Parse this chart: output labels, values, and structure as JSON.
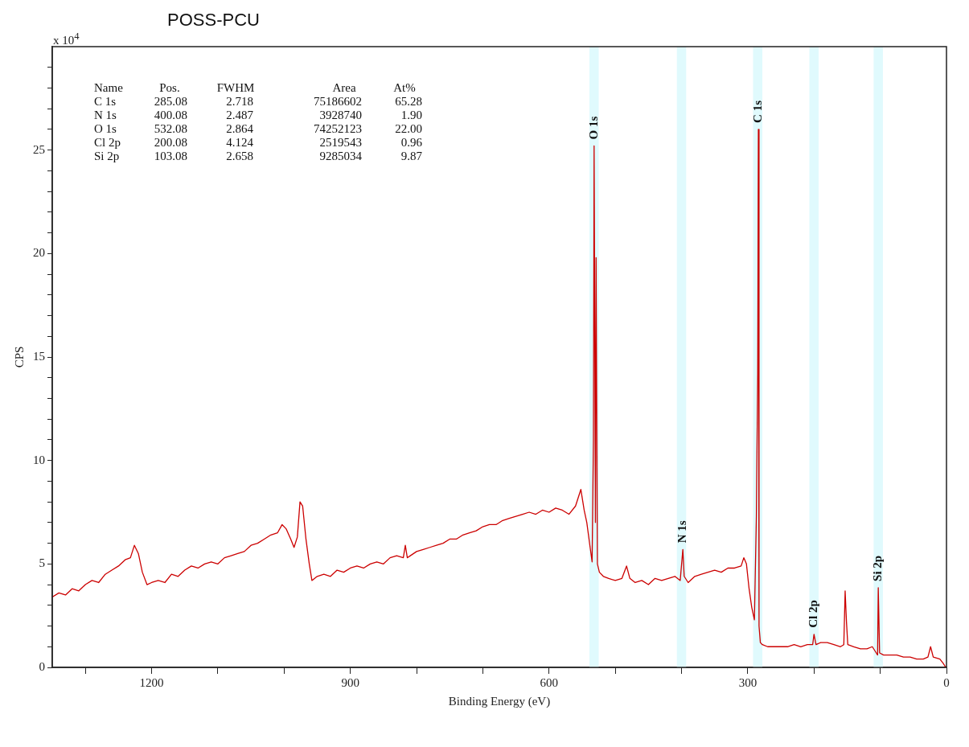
{
  "chart_data": {
    "type": "line",
    "title": "POSS-PCU",
    "xlabel": "Binding Energy (eV)",
    "ylabel": "CPS",
    "x": [
      1350,
      1340,
      1330,
      1320,
      1310,
      1300,
      1290,
      1280,
      1270,
      1260,
      1250,
      1240,
      1232,
      1226,
      1220,
      1214,
      1207,
      1200,
      1190,
      1180,
      1170,
      1160,
      1150,
      1140,
      1130,
      1120,
      1110,
      1100,
      1090,
      1080,
      1070,
      1060,
      1050,
      1040,
      1030,
      1020,
      1010,
      1003,
      997,
      990,
      985,
      980,
      976,
      972,
      967,
      962,
      958,
      950,
      940,
      930,
      920,
      910,
      900,
      890,
      880,
      870,
      860,
      850,
      840,
      830,
      820,
      817,
      814,
      800,
      790,
      780,
      770,
      760,
      750,
      740,
      730,
      720,
      710,
      700,
      690,
      680,
      670,
      660,
      650,
      640,
      630,
      620,
      610,
      600,
      590,
      580,
      570,
      560,
      552,
      547,
      543,
      538,
      535,
      533,
      532,
      530,
      529,
      527,
      524,
      518,
      510,
      500,
      490,
      483,
      478,
      470,
      460,
      450,
      440,
      430,
      420,
      410,
      402,
      398,
      396,
      390,
      380,
      370,
      360,
      350,
      340,
      330,
      320,
      310,
      306,
      302,
      298,
      294,
      290,
      287,
      285,
      284,
      283,
      281,
      278,
      270,
      260,
      250,
      240,
      230,
      220,
      210,
      202,
      200,
      197,
      190,
      180,
      170,
      160,
      155,
      153,
      151,
      149,
      140,
      130,
      120,
      112,
      106,
      104,
      103,
      101,
      95,
      85,
      75,
      65,
      55,
      45,
      35,
      28,
      24,
      20,
      10,
      5,
      1
    ],
    "values": [
      3.4,
      3.6,
      3.5,
      3.8,
      3.7,
      4.0,
      4.2,
      4.1,
      4.5,
      4.7,
      4.9,
      5.2,
      5.3,
      5.9,
      5.5,
      4.6,
      4.0,
      4.1,
      4.2,
      4.1,
      4.5,
      4.4,
      4.7,
      4.9,
      4.8,
      5.0,
      5.1,
      5.0,
      5.3,
      5.4,
      5.5,
      5.6,
      5.9,
      6.0,
      6.2,
      6.4,
      6.5,
      6.9,
      6.7,
      6.2,
      5.8,
      6.3,
      8.0,
      7.8,
      6.2,
      5.0,
      4.2,
      4.4,
      4.5,
      4.4,
      4.7,
      4.6,
      4.8,
      4.9,
      4.8,
      5.0,
      5.1,
      5.0,
      5.3,
      5.4,
      5.3,
      5.9,
      5.3,
      5.6,
      5.7,
      5.8,
      5.9,
      6.0,
      6.2,
      6.2,
      6.4,
      6.5,
      6.6,
      6.8,
      6.9,
      6.9,
      7.1,
      7.2,
      7.3,
      7.4,
      7.5,
      7.4,
      7.6,
      7.5,
      7.7,
      7.6,
      7.4,
      7.8,
      8.6,
      7.6,
      7.0,
      5.8,
      5.1,
      11.0,
      25.2,
      7.0,
      19.8,
      5.0,
      4.6,
      4.4,
      4.3,
      4.2,
      4.3,
      4.9,
      4.3,
      4.1,
      4.2,
      4.0,
      4.3,
      4.2,
      4.3,
      4.4,
      4.2,
      5.7,
      4.4,
      4.1,
      4.4,
      4.5,
      4.6,
      4.7,
      4.6,
      4.8,
      4.8,
      4.9,
      5.3,
      5.0,
      3.8,
      2.9,
      2.3,
      7.3,
      14.2,
      26.0,
      2.0,
      1.2,
      1.1,
      1.0,
      1.0,
      1.0,
      1.0,
      1.1,
      1.0,
      1.1,
      1.1,
      1.6,
      1.1,
      1.2,
      1.2,
      1.1,
      1.0,
      1.1,
      3.7,
      2.2,
      1.1,
      1.0,
      0.9,
      0.9,
      1.0,
      0.7,
      0.6,
      3.85,
      0.7,
      0.6,
      0.6,
      0.6,
      0.5,
      0.5,
      0.4,
      0.4,
      0.5,
      1.0,
      0.5,
      0.4,
      0.2,
      0.0
    ],
    "color": "#cc0000",
    "marker": "none",
    "grid": false,
    "legend": false,
    "xlim": [
      1350,
      0
    ],
    "xticks": [
      {
        "value": 1300,
        "label": null
      },
      1200,
      {
        "value": 1100,
        "label": null
      },
      {
        "value": 1000,
        "label": null
      },
      900,
      {
        "value": 800,
        "label": null
      },
      {
        "value": 700,
        "label": null
      },
      600,
      {
        "value": 500,
        "label": null
      },
      {
        "value": 400,
        "label": null
      },
      300,
      {
        "value": 200,
        "label": null
      },
      {
        "value": 100,
        "label": null
      },
      0
    ],
    "ylim": [
      0,
      30
    ],
    "yticks": [
      0,
      {
        "value": 1,
        "label": null
      },
      {
        "value": 2,
        "label": null
      },
      {
        "value": 3,
        "label": null
      },
      {
        "value": 4,
        "label": null
      },
      5,
      {
        "value": 6,
        "label": null
      },
      {
        "value": 7,
        "label": null
      },
      {
        "value": 8,
        "label": null
      },
      {
        "value": 9,
        "label": null
      },
      10,
      {
        "value": 11,
        "label": null
      },
      {
        "value": 12,
        "label": null
      },
      {
        "value": 13,
        "label": null
      },
      {
        "value": 14,
        "label": null
      },
      15,
      {
        "value": 16,
        "label": null
      },
      {
        "value": 17,
        "label": null
      },
      {
        "value": 18,
        "label": null
      },
      {
        "value": 19,
        "label": null
      },
      20,
      {
        "value": 21,
        "label": null
      },
      {
        "value": 22,
        "label": null
      },
      {
        "value": 23,
        "label": null
      },
      {
        "value": 24,
        "label": null
      },
      25,
      {
        "value": 26,
        "label": null
      },
      {
        "value": 27,
        "label": null
      },
      {
        "value": 28,
        "label": null
      },
      {
        "value": 29,
        "label": null
      }
    ],
    "bands": [
      {
        "axis": "x",
        "from": 525,
        "to": 539,
        "color": "#e0fafd"
      },
      {
        "axis": "x",
        "from": 393,
        "to": 407,
        "color": "#e0fafd"
      },
      {
        "axis": "x",
        "from": 278,
        "to": 292,
        "color": "#e0fafd"
      },
      {
        "axis": "x",
        "from": 193,
        "to": 207,
        "color": "#e0fafd"
      },
      {
        "axis": "x",
        "from": 96,
        "to": 110,
        "color": "#e0fafd"
      }
    ],
    "annotations": [
      "x 10$^{4}$",
      "Name",
      "Pos.",
      "FWHM",
      "Area",
      "At%",
      "C 1s",
      "285.08",
      "2.718",
      "75186602",
      "65.28",
      "N 1s",
      "400.08",
      "2.487",
      "3928740",
      "1.90",
      "O 1s",
      "532.08",
      "2.864",
      "74252123",
      "22.00",
      "Cl 2p",
      "200.08",
      "4.124",
      "2519543",
      "0.96",
      "Si 2p",
      "103.08",
      "2.658",
      "9285034",
      "9.87",
      {
        "text": "O 1s",
        "x": 532,
        "y": 25.2
      },
      {
        "text": "C 1s",
        "x": 284,
        "y": 26.0
      },
      {
        "text": "N 1s",
        "x": 398,
        "y": 5.7
      },
      {
        "text": "Cl 2p",
        "x": 200,
        "y": 1.6
      },
      {
        "text": "Si 2p",
        "x": 103,
        "y": 3.85
      }
    ]
  }
}
